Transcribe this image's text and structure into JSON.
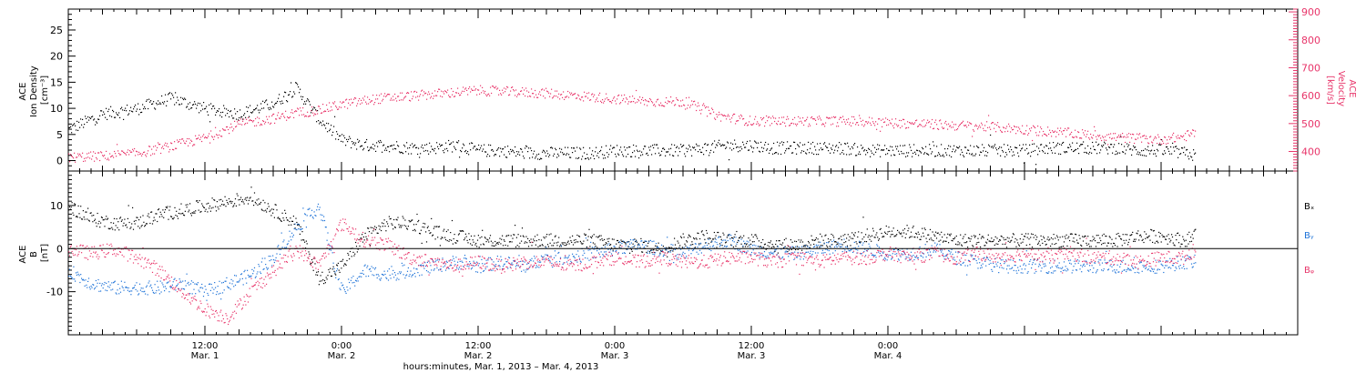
{
  "chart_data": [
    {
      "type": "scatter",
      "panel": "top",
      "ylabel_left_lines": [
        "ACE",
        "Ion Density",
        "[cm⁻³]"
      ],
      "ylabel_right_lines": [
        "ACE",
        "Velocity",
        "[km/s]"
      ],
      "ylim_left": [
        -2,
        29
      ],
      "yticks_left": [
        0,
        5,
        10,
        15,
        20,
        25
      ],
      "ylim_right": [
        330,
        910
      ],
      "yticks_right": [
        400,
        500,
        600,
        700,
        800,
        900
      ],
      "series": [
        {
          "color": "#000000",
          "axis": "left",
          "x_hours": [
            0,
            3,
            6,
            9,
            12,
            15,
            18,
            20,
            22,
            24,
            26,
            28,
            30,
            32,
            34,
            36,
            38,
            40,
            42,
            44,
            46,
            48,
            50,
            52,
            54,
            56,
            58,
            60,
            62,
            64,
            66,
            68,
            70,
            72,
            74,
            76,
            78,
            80,
            82,
            84,
            86,
            88,
            90,
            92,
            94,
            96,
            98,
            99
          ],
          "values": [
            6,
            9,
            10,
            12,
            10,
            9,
            11,
            14,
            8,
            4,
            3,
            3,
            2.5,
            2.5,
            3,
            2,
            2,
            1.5,
            1.5,
            1.5,
            1.5,
            2,
            2,
            2,
            2,
            2.5,
            3,
            3,
            2.5,
            2.5,
            2.5,
            2.5,
            2,
            2,
            2,
            2,
            2,
            2,
            2,
            2,
            2.5,
            2.5,
            2.5,
            2.5,
            2,
            2,
            1.5,
            1
          ]
        },
        {
          "color": "#e8356a",
          "axis": "right",
          "x_hours": [
            0,
            3,
            6,
            9,
            12,
            15,
            18,
            20,
            22,
            24,
            27,
            30,
            33,
            36,
            39,
            42,
            45,
            48,
            51,
            54,
            57,
            60,
            63,
            66,
            69,
            72,
            75,
            78,
            81,
            84,
            87,
            90,
            93,
            96,
            98,
            99
          ],
          "values": [
            380,
            385,
            395,
            420,
            450,
            500,
            520,
            540,
            550,
            570,
            590,
            600,
            610,
            620,
            615,
            610,
            600,
            590,
            580,
            580,
            530,
            510,
            510,
            510,
            510,
            505,
            500,
            495,
            490,
            480,
            470,
            460,
            450,
            445,
            455,
            470
          ]
        }
      ]
    },
    {
      "type": "scatter",
      "panel": "bottom",
      "ylabel_lines": [
        "ACE",
        "B",
        "[nT]"
      ],
      "ylim": [
        -20,
        18
      ],
      "yticks": [
        -10,
        0,
        10
      ],
      "zero_line": true,
      "series": [
        {
          "name": "Bₓ",
          "color": "#000000",
          "x_hours": [
            0,
            2,
            4,
            6,
            8,
            10,
            12,
            14,
            16,
            18,
            20,
            22,
            24,
            26,
            28,
            30,
            32,
            34,
            36,
            38,
            40,
            42,
            44,
            46,
            48,
            50,
            52,
            54,
            56,
            58,
            60,
            62,
            64,
            66,
            68,
            70,
            72,
            74,
            76,
            78,
            80,
            82,
            84,
            86,
            88,
            90,
            92,
            94,
            96,
            98,
            99
          ],
          "values": [
            10,
            7,
            6,
            6,
            8,
            9,
            10,
            11,
            12,
            9,
            6,
            -7,
            -4,
            3,
            6,
            6,
            4,
            3,
            2,
            2,
            2,
            2,
            2,
            2,
            1,
            1,
            0,
            2,
            3,
            2,
            2,
            1,
            1,
            2,
            2,
            3,
            4,
            4,
            3,
            2,
            2,
            2,
            2,
            2,
            2,
            2,
            2,
            3,
            3,
            2,
            3
          ]
        },
        {
          "name": "Bᵧ",
          "color": "#1e73d8",
          "x_hours": [
            0,
            2,
            4,
            6,
            8,
            10,
            12,
            14,
            16,
            18,
            20,
            22,
            24,
            26,
            28,
            30,
            32,
            34,
            36,
            38,
            40,
            42,
            44,
            46,
            48,
            50,
            52,
            54,
            56,
            58,
            60,
            62,
            64,
            66,
            68,
            70,
            72,
            74,
            76,
            78,
            80,
            82,
            84,
            86,
            88,
            90,
            92,
            94,
            96,
            98,
            99
          ],
          "values": [
            -5,
            -8,
            -9,
            -9,
            -9,
            -8,
            -10,
            -8,
            -6,
            -2,
            5,
            10,
            -10,
            -5,
            -6,
            -5,
            -4,
            -3,
            -4,
            -3,
            -4,
            -2,
            -2,
            -1,
            0,
            1,
            0,
            -1,
            1,
            2,
            0,
            -1,
            -1,
            0,
            1,
            0,
            -1,
            -1,
            0,
            -2,
            -3,
            -4,
            -4,
            -4,
            -4,
            -4,
            -4,
            -4,
            -4,
            -3,
            -3
          ]
        },
        {
          "name": "Bᵩ",
          "color": "#e8356a",
          "x_hours": [
            0,
            2,
            4,
            6,
            8,
            10,
            12,
            14,
            16,
            18,
            20,
            22,
            24,
            26,
            28,
            30,
            32,
            34,
            36,
            38,
            40,
            42,
            44,
            46,
            48,
            50,
            52,
            54,
            56,
            58,
            60,
            62,
            64,
            66,
            68,
            70,
            72,
            74,
            76,
            78,
            80,
            82,
            84,
            86,
            88,
            90,
            92,
            94,
            96,
            98,
            99
          ],
          "values": [
            0,
            -1,
            0,
            -2,
            -5,
            -10,
            -14,
            -16,
            -10,
            -5,
            0,
            -4,
            6,
            2,
            1,
            -2,
            -3,
            -4,
            -3,
            -4,
            -3,
            -3,
            -4,
            -3,
            -2,
            -3,
            -2,
            -3,
            -3,
            -2,
            -2,
            -3,
            -2,
            -3,
            -2,
            -2,
            -1,
            -2,
            -1,
            -2,
            -1,
            -2,
            -1,
            -2,
            -1,
            -2,
            -2,
            -3,
            -2,
            -2,
            0
          ]
        }
      ],
      "legend": [
        "Bₓ",
        "Bᵧ",
        "Bᵩ"
      ]
    }
  ],
  "xaxis": {
    "range_hours": [
      0,
      108
    ],
    "ticks": [
      {
        "hour": 12,
        "time": "12:00",
        "day": "Mar. 1"
      },
      {
        "hour": 24,
        "time": "0:00",
        "day": "Mar. 2"
      },
      {
        "hour": 36,
        "time": "12:00",
        "day": "Mar. 2"
      },
      {
        "hour": 48,
        "time": "0:00",
        "day": "Mar. 3"
      },
      {
        "hour": 60,
        "time": "12:00",
        "day": "Mar. 3"
      },
      {
        "hour": 72,
        "time": "0:00",
        "day": "Mar. 4"
      }
    ],
    "title": "hours:minutes, Mar.  1, 2013 – Mar.  4, 2013"
  }
}
